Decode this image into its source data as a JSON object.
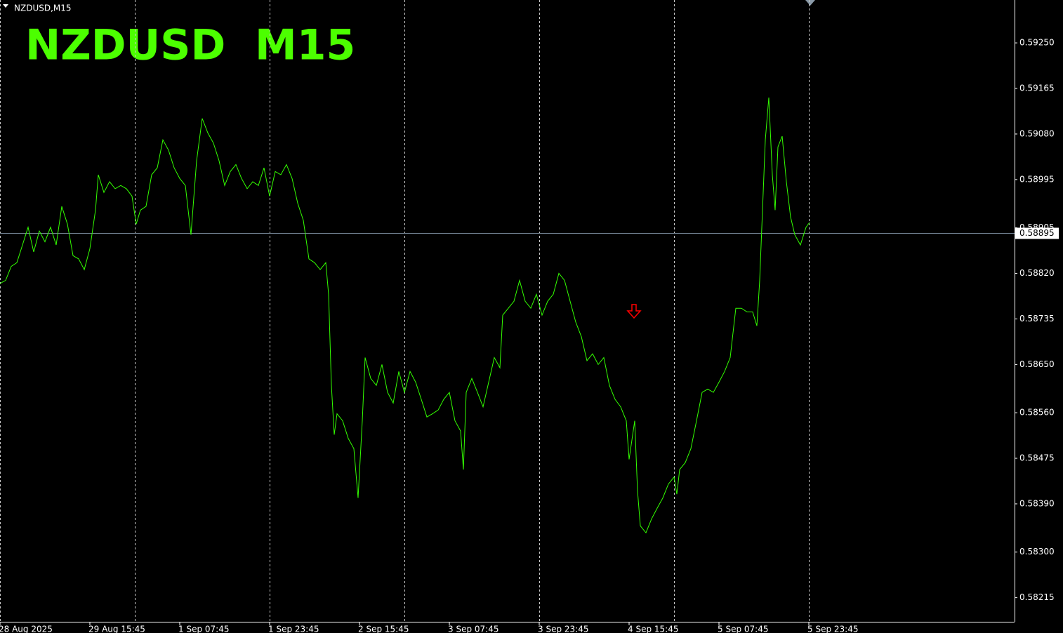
{
  "chart_data": {
    "type": "line",
    "title": "NZDUSD  M15",
    "symbol_label": "NZDUSD,M15",
    "color": "#33ff00",
    "x": [
      0,
      4,
      8,
      12,
      16,
      20,
      24,
      28,
      32,
      36,
      40,
      44,
      48,
      52,
      56,
      60,
      64,
      68,
      70,
      74,
      78,
      82,
      86,
      90,
      94,
      97,
      100,
      104,
      108,
      112,
      116,
      120,
      124,
      128,
      132,
      136,
      140,
      144,
      148,
      152,
      156,
      160,
      164,
      168,
      172,
      176,
      180,
      184,
      188,
      192,
      196,
      200,
      204,
      208,
      212,
      216,
      220,
      224,
      228,
      232,
      234,
      236,
      238,
      240,
      244,
      248,
      252,
      255,
      258,
      260,
      264,
      268,
      272,
      276,
      280,
      284,
      288,
      292,
      296,
      300,
      304,
      308,
      312,
      316,
      320,
      324,
      328,
      330,
      332,
      336,
      340,
      344,
      348,
      352,
      356,
      358,
      362,
      366,
      370,
      374,
      378,
      382,
      386,
      390,
      394,
      398,
      402,
      406,
      410,
      414,
      418,
      422,
      426,
      430,
      434,
      438,
      442,
      446,
      448,
      452,
      454,
      456,
      460,
      464,
      468,
      472,
      476,
      480,
      482,
      484,
      488,
      492,
      496,
      500,
      504,
      508,
      512,
      516,
      520,
      524,
      528,
      532,
      536,
      539,
      541,
      543,
      545,
      547.5,
      550,
      552,
      554,
      557,
      560,
      563,
      566,
      570,
      574,
      576.5
    ],
    "values": [
      0.58801,
      0.58807,
      0.58833,
      0.5884,
      0.58873,
      0.58906,
      0.5886,
      0.58899,
      0.58879,
      0.58906,
      0.58873,
      0.58945,
      0.58912,
      0.58853,
      0.58847,
      0.58827,
      0.58866,
      0.58938,
      0.59004,
      0.58971,
      0.58991,
      0.58978,
      0.58984,
      0.58978,
      0.58964,
      0.58912,
      0.58938,
      0.58945,
      0.59004,
      0.59017,
      0.59069,
      0.5905,
      0.59017,
      0.58997,
      0.58984,
      0.58892,
      0.5903,
      0.59109,
      0.59082,
      0.59063,
      0.5903,
      0.58984,
      0.5901,
      0.59023,
      0.58997,
      0.58978,
      0.58991,
      0.58984,
      0.59017,
      0.58964,
      0.5901,
      0.59004,
      0.59023,
      0.58997,
      0.58951,
      0.58919,
      0.58847,
      0.5884,
      0.58827,
      0.5884,
      0.58781,
      0.58611,
      0.58519,
      0.58558,
      0.58545,
      0.58512,
      0.58493,
      0.58401,
      0.58545,
      0.58663,
      0.58624,
      0.58611,
      0.5865,
      0.58598,
      0.58578,
      0.58637,
      0.58598,
      0.58637,
      0.58617,
      0.58585,
      0.58552,
      0.58558,
      0.58565,
      0.58585,
      0.58598,
      0.58545,
      0.58526,
      0.58454,
      0.58598,
      0.58624,
      0.58598,
      0.58571,
      0.58617,
      0.58663,
      0.58644,
      0.58742,
      0.58755,
      0.58768,
      0.58807,
      0.58768,
      0.58755,
      0.58781,
      0.58742,
      0.58768,
      0.58781,
      0.5882,
      0.58807,
      0.58768,
      0.58729,
      0.58702,
      0.58657,
      0.5867,
      0.5865,
      0.58663,
      0.58611,
      0.58585,
      0.58571,
      0.58545,
      0.58473,
      0.58545,
      0.58414,
      0.58349,
      0.58336,
      0.58362,
      0.58382,
      0.58401,
      0.58427,
      0.5844,
      0.58408,
      0.58454,
      0.58467,
      0.58493,
      0.58545,
      0.58598,
      0.58604,
      0.58598,
      0.58617,
      0.58637,
      0.58663,
      0.58755,
      0.58755,
      0.58748,
      0.58748,
      0.58722,
      0.58807,
      0.58938,
      0.59069,
      0.59148,
      0.59004,
      0.58938,
      0.59056,
      0.59076,
      0.58991,
      0.58925,
      0.58892,
      0.58873,
      0.58906,
      0.58915
    ],
    "xlim": [
      0,
      722.5
    ],
    "ylim": [
      0.5817,
      0.5933
    ],
    "xticks": [
      {
        "value": 0,
        "label": "28 Aug 2025"
      },
      {
        "value": 64,
        "label": "29 Aug 15:45"
      },
      {
        "value": 128,
        "label": "1 Sep 07:45"
      },
      {
        "value": 192,
        "label": "1 Sep 23:45"
      },
      {
        "value": 256,
        "label": "2 Sep 15:45"
      },
      {
        "value": 320,
        "label": "3 Sep 07:45"
      },
      {
        "value": 384,
        "label": "3 Sep 23:45"
      },
      {
        "value": 448,
        "label": "4 Sep 15:45"
      },
      {
        "value": 512,
        "label": "5 Sep 07:45"
      },
      {
        "value": 576,
        "label": "5 Sep 23:45"
      }
    ],
    "xgrid": [
      0,
      96,
      192,
      288,
      384,
      480,
      576
    ],
    "yticks": [
      {
        "value": 0.5925,
        "label": "0.59250"
      },
      {
        "value": 0.59165,
        "label": "0.59165"
      },
      {
        "value": 0.5908,
        "label": "0.59080"
      },
      {
        "value": 0.58995,
        "label": "0.58995"
      },
      {
        "value": 0.58905,
        "label": "0.58905"
      },
      {
        "value": 0.5882,
        "label": "0.58820"
      },
      {
        "value": 0.58735,
        "label": "0.58735"
      },
      {
        "value": 0.5865,
        "label": "0.58650"
      },
      {
        "value": 0.5856,
        "label": "0.58560"
      },
      {
        "value": 0.58475,
        "label": "0.58475"
      },
      {
        "value": 0.5839,
        "label": "0.58390"
      },
      {
        "value": 0.583,
        "label": "0.58300"
      },
      {
        "value": 0.58215,
        "label": "0.58215"
      }
    ],
    "price_line": {
      "value": 0.58895,
      "color": "#778899"
    },
    "arrows": [
      {
        "x": 451.5,
        "y": 0.58746,
        "color": "#ff0000"
      }
    ]
  }
}
